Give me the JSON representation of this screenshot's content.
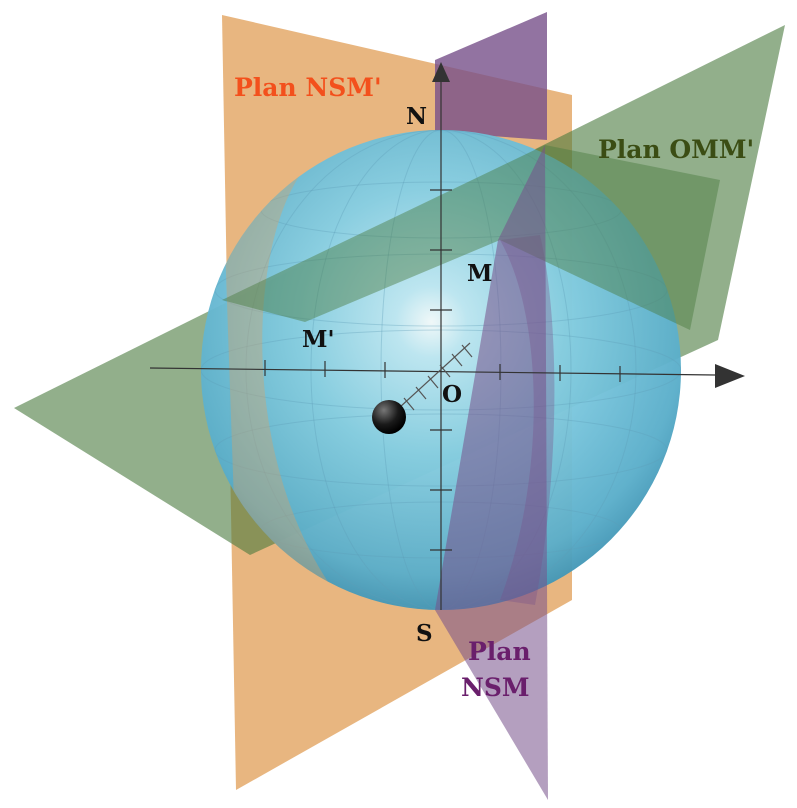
{
  "colors": {
    "orange_plane": "#e2a15c",
    "purple_plane": "#77508a",
    "green_plane": "#4a7a3e",
    "sphere_light": "#d6f2fb",
    "sphere_mid": "#86cfe4",
    "sphere_dark": "#3d90b0",
    "label_orange": "#f3501c",
    "label_green": "#3b4d14",
    "label_purple": "#6a1f6c",
    "label_black": "#111111"
  },
  "labels": {
    "plan_nsm_prime": "Plan NSM'",
    "plan_omm_prime": "Plan OMM'",
    "plan_nsm_line1": "Plan",
    "plan_nsm_line2": "NSM",
    "n": "N",
    "s": "S",
    "m": "M",
    "m_prime": "M'",
    "o": "O"
  }
}
